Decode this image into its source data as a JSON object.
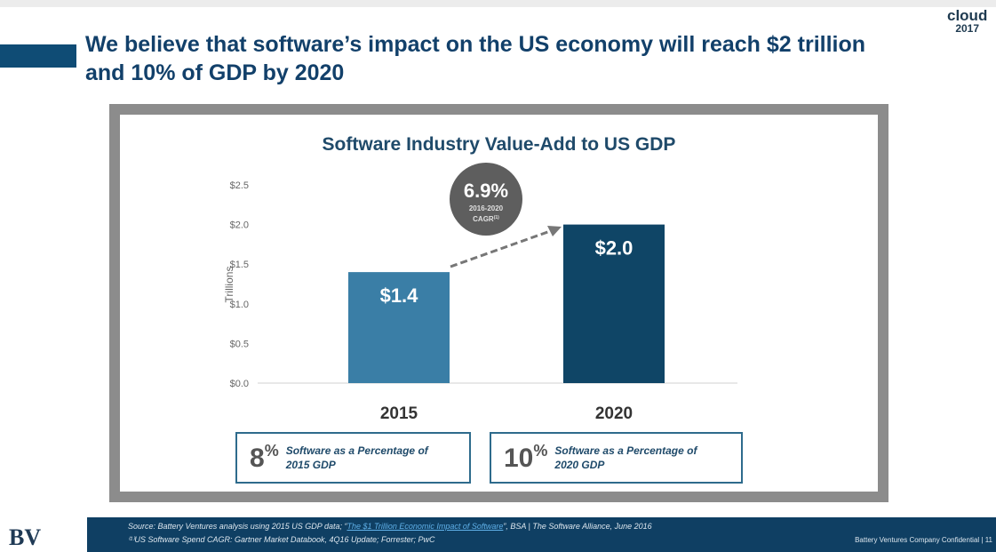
{
  "slide": {
    "title": "We believe that software’s impact on the US economy will reach $2 trillion and 10% of GDP by 2020",
    "logo_line1": "cloud",
    "logo_line2": "2017",
    "bv_logo": "BV"
  },
  "chart_data": {
    "type": "bar",
    "title": "Software Industry Value-Add to US GDP",
    "ylabel": "Trillions",
    "xlabel": "",
    "categories": [
      "2015",
      "2020"
    ],
    "values": [
      1.4,
      2.0
    ],
    "data_labels": [
      "$1.4",
      "$2.0"
    ],
    "ylim": [
      0,
      2.5
    ],
    "yticks": [
      0,
      0.5,
      1.0,
      1.5,
      2.0,
      2.5
    ],
    "ytick_labels": [
      "$0.0",
      "$0.5",
      "$1.0",
      "$1.5",
      "$2.0",
      "$2.5"
    ],
    "colors": [
      "#3a7ea6",
      "#0f4566"
    ],
    "annotation": {
      "value": "6.9%",
      "line1": "2016-2020",
      "line2": "CAGR",
      "footnote": "(1)"
    }
  },
  "callouts": [
    {
      "percent": "8",
      "sign": "%",
      "text": "Software as a Percentage of 2015 GDP"
    },
    {
      "percent": "10",
      "sign": "%",
      "text": "Software as a Percentage of 2020 GDP"
    }
  ],
  "footer": {
    "source_prefix": "Source: Battery Ventures analysis using 2015 US GDP data; “",
    "source_link": "The $1 Trillion Economic Impact of Software",
    "source_suffix": "”, BSA | The Software Alliance, June 2016",
    "note": "⁽¹⁾US Software Spend CAGR: Gartner Market Databook, 4Q16 Update; Forrester; PwC",
    "confidential": "Battery Ventures Company Confidential | 11"
  }
}
